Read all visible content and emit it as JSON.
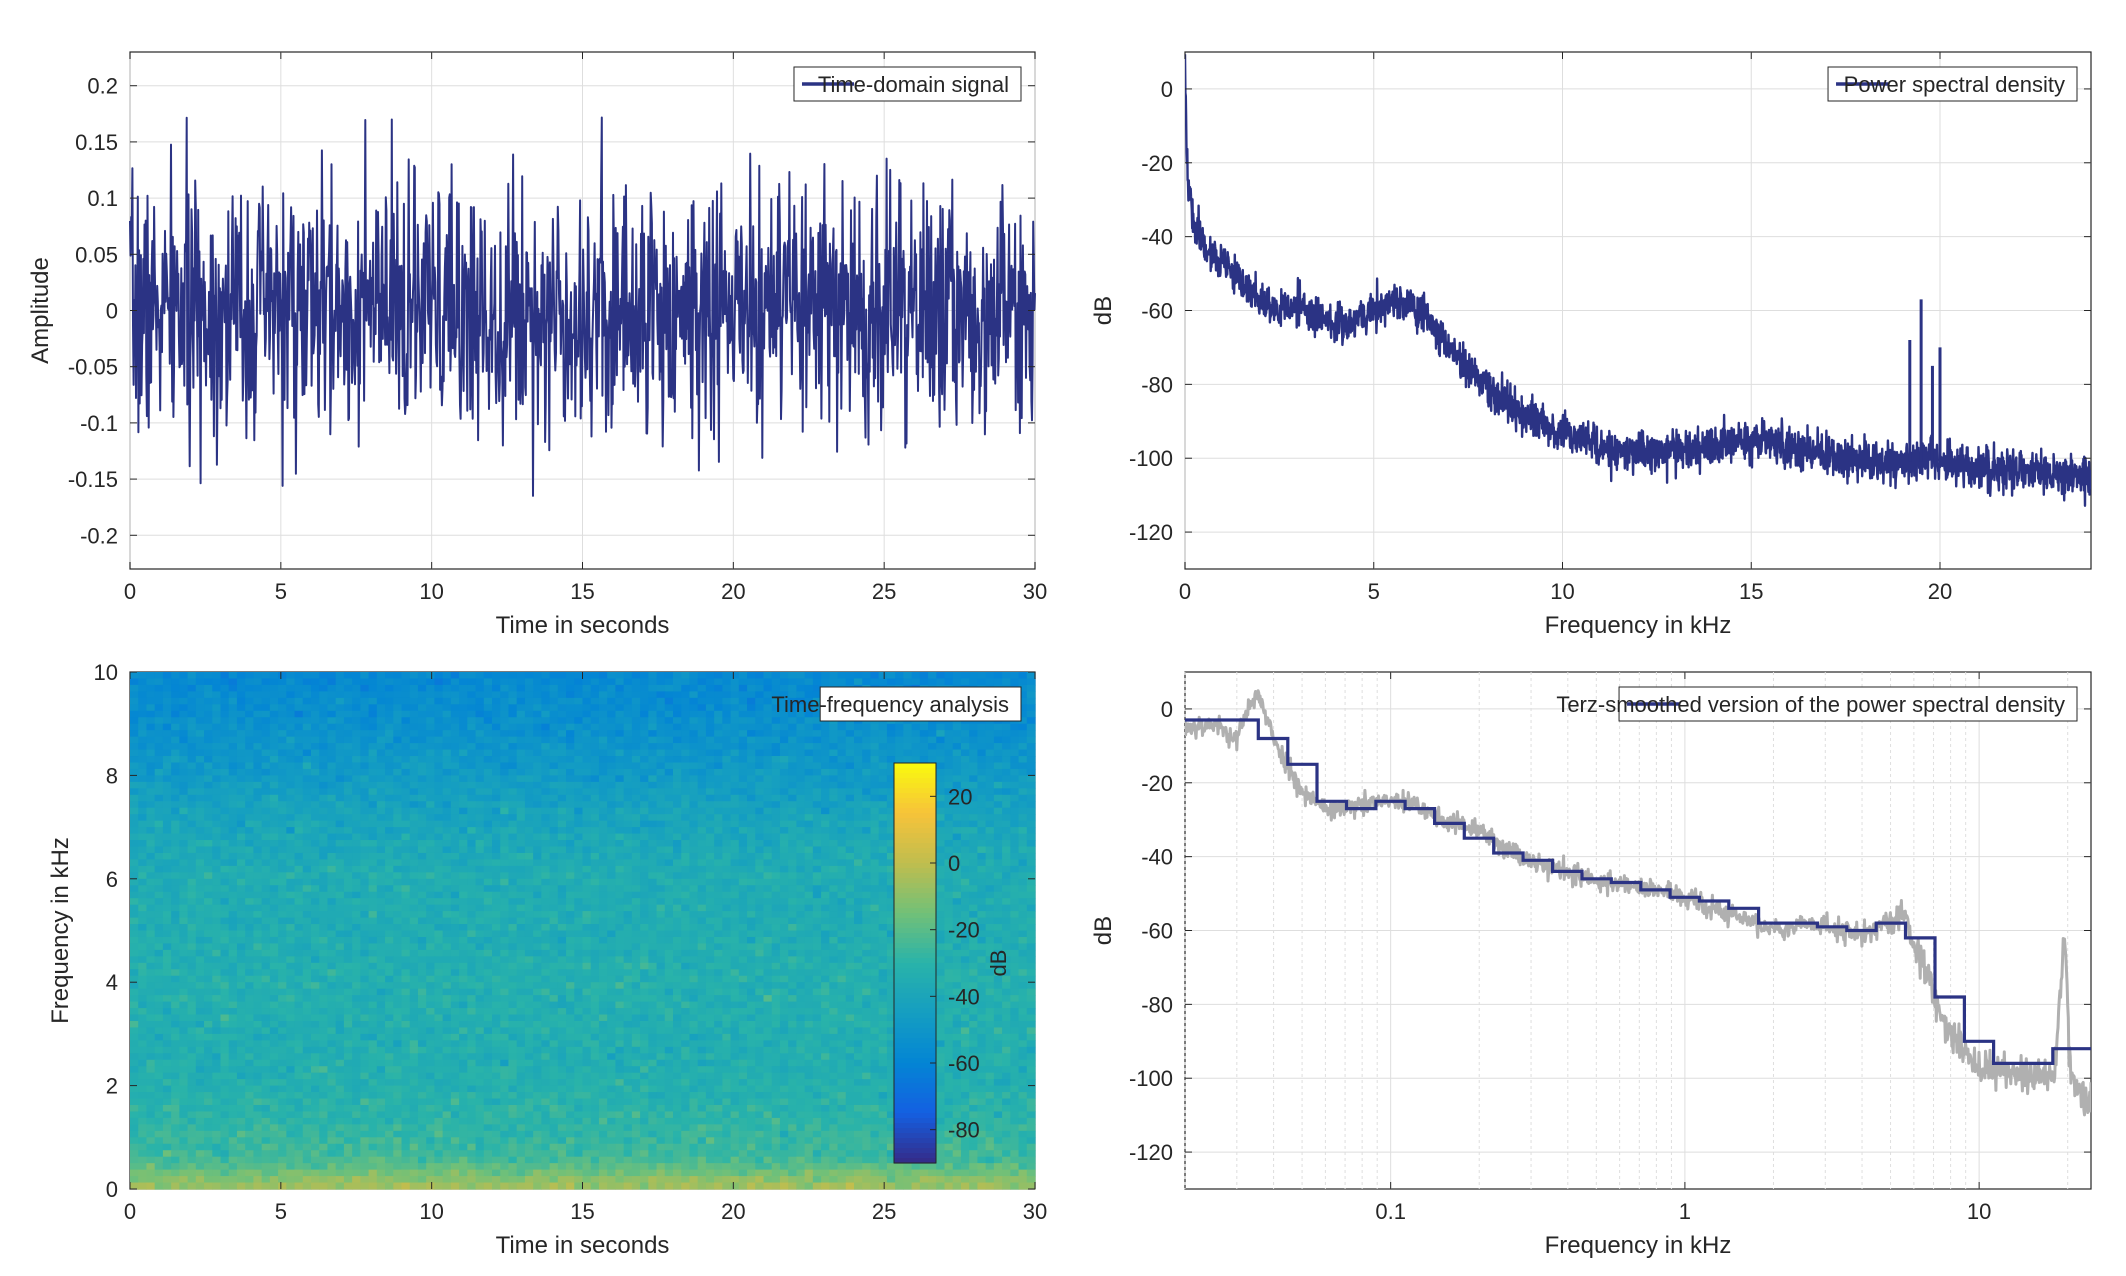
{
  "chart_data": [
    {
      "id": "time",
      "type": "line",
      "xlabel": "Time in seconds",
      "ylabel": "Amplitude",
      "xlim": [
        0,
        30
      ],
      "ylim": [
        -0.23,
        0.23
      ],
      "xticks": [
        0,
        5,
        10,
        15,
        20,
        25,
        30
      ],
      "xtick_labels": [
        "0",
        "5",
        "10",
        "15",
        "20",
        "25",
        "30"
      ],
      "yticks": [
        -0.2,
        -0.15,
        -0.1,
        -0.05,
        0,
        0.05,
        0.1,
        0.15,
        0.2
      ],
      "ytick_labels": [
        "-0.2",
        "-0.15",
        "-0.1",
        "-0.05",
        "0",
        "0.05",
        "0.1",
        "0.15",
        "0.2"
      ],
      "grid": true,
      "legend_position": "top-right",
      "series": [
        {
          "name": "Time-domain signal",
          "color": "#2b3384",
          "signal": {
            "kind": "noise",
            "samples": 1500,
            "std": 0.055,
            "peak_envelope": [
              -0.165,
              0.185
            ]
          }
        }
      ]
    },
    {
      "id": "psd",
      "type": "line",
      "xlabel": "Frequency in kHz",
      "ylabel": "dB",
      "xlim": [
        0,
        24
      ],
      "ylim": [
        -130,
        10
      ],
      "xticks": [
        0,
        5,
        10,
        15,
        20
      ],
      "xtick_labels": [
        "0",
        "5",
        "10",
        "15",
        "20"
      ],
      "yticks": [
        -120,
        -100,
        -80,
        -60,
        -40,
        -20,
        0
      ],
      "ytick_labels": [
        "-120",
        "-100",
        "-80",
        "-60",
        "-40",
        "-20",
        "0"
      ],
      "grid": true,
      "legend_position": "top-right",
      "series": [
        {
          "name": "Power spectral density",
          "color": "#2b3384",
          "x": [
            0,
            0.05,
            0.2,
            0.5,
            1,
            1.5,
            2,
            2.5,
            3,
            3.5,
            4,
            4.5,
            5,
            5.5,
            6,
            6.5,
            7,
            7.5,
            8,
            8.5,
            9,
            9.5,
            10,
            10.5,
            11,
            11.5,
            12,
            12.5,
            13,
            13.5,
            14,
            14.5,
            15,
            15.5,
            16,
            16.5,
            17,
            17.5,
            18,
            18.5,
            19,
            19.5,
            20,
            20.5,
            21,
            21.5,
            22,
            22.5,
            23,
            23.5,
            24
          ],
          "y": [
            5,
            -20,
            -35,
            -42,
            -48,
            -52,
            -58,
            -60,
            -58,
            -62,
            -64,
            -62,
            -60,
            -58,
            -58,
            -63,
            -70,
            -76,
            -81,
            -85,
            -88,
            -91,
            -93,
            -95,
            -97,
            -98,
            -98,
            -99,
            -98,
            -97,
            -97,
            -96,
            -95,
            -96,
            -97,
            -98,
            -99,
            -100,
            -100,
            -101,
            -101,
            -101,
            -101,
            -102,
            -102,
            -103,
            -103,
            -104,
            -104,
            -105,
            -105
          ],
          "spikes": [
            {
              "x": 19.5,
              "y": -57
            },
            {
              "x": 19.2,
              "y": -68
            },
            {
              "x": 19.8,
              "y": -75
            },
            {
              "x": 20.0,
              "y": -70
            }
          ]
        }
      ]
    },
    {
      "id": "spectrogram",
      "type": "heatmap",
      "xlabel": "Time in seconds",
      "ylabel": "Frequency in kHz",
      "xlim": [
        0,
        30
      ],
      "ylim": [
        0,
        10
      ],
      "xticks": [
        0,
        5,
        10,
        15,
        20,
        25,
        30
      ],
      "xtick_labels": [
        "0",
        "5",
        "10",
        "15",
        "20",
        "25",
        "30"
      ],
      "yticks": [
        0,
        2,
        4,
        6,
        8,
        10
      ],
      "ytick_labels": [
        "0",
        "2",
        "4",
        "6",
        "8",
        "10"
      ],
      "legend_position": "top-right",
      "legend_label": "Time-frequency analysis",
      "colorbar": {
        "label": "dB",
        "range": [
          -90,
          30
        ],
        "ticks": [
          20,
          0,
          -20,
          -40,
          -60,
          -80
        ],
        "tick_labels": [
          "20",
          "0",
          "-20",
          "-40",
          "-60",
          "-80"
        ]
      },
      "level_profile": {
        "freq_khz": [
          0,
          0.3,
          0.6,
          1,
          1.5,
          2,
          3,
          4,
          5,
          6,
          7,
          8,
          9,
          10
        ],
        "level_db": [
          -5,
          -15,
          -25,
          -28,
          -30,
          -33,
          -34,
          -33,
          -35,
          -35,
          -40,
          -47,
          -53,
          -58
        ]
      }
    },
    {
      "id": "terz",
      "type": "line",
      "xlabel": "Frequency in kHz",
      "ylabel": "dB",
      "xscale": "log",
      "xlim": [
        0.02,
        24
      ],
      "ylim": [
        -130,
        10
      ],
      "xticks": [
        0.1,
        1,
        10
      ],
      "xtick_labels": [
        "0.1",
        "1",
        "10"
      ],
      "yticks": [
        -120,
        -100,
        -80,
        -60,
        -40,
        -20,
        0
      ],
      "ytick_labels": [
        "-120",
        "-100",
        "-80",
        "-60",
        "-40",
        "-20",
        "0"
      ],
      "grid": true,
      "legend_position": "top-right",
      "series": [
        {
          "name": "",
          "color": "#b0b0b0",
          "x": [
            0.02,
            0.025,
            0.03,
            0.035,
            0.04,
            0.045,
            0.05,
            0.06,
            0.07,
            0.08,
            0.1,
            0.12,
            0.15,
            0.2,
            0.25,
            0.3,
            0.4,
            0.5,
            0.6,
            0.8,
            1,
            1.2,
            1.5,
            2,
            2.5,
            3,
            4,
            5,
            5.5,
            6,
            7,
            8,
            9,
            10,
            12,
            15,
            18,
            19.5,
            20.5,
            22,
            24
          ],
          "y": [
            -5,
            -4,
            -8,
            5,
            -8,
            -16,
            -22,
            -27,
            -27,
            -26,
            -25,
            -26,
            -30,
            -33,
            -38,
            -41,
            -44,
            -47,
            -47,
            -49,
            -51,
            -54,
            -56,
            -60,
            -58,
            -59,
            -61,
            -57,
            -55,
            -62,
            -78,
            -88,
            -93,
            -97,
            -98,
            -99,
            -100,
            -60,
            -100,
            -104,
            -108
          ]
        },
        {
          "name": "Terz-smoothed version of the power spectral density",
          "color": "#2b3384",
          "steps": {
            "edges": [
              0.02,
              0.0355,
              0.0447,
              0.0562,
              0.0708,
              0.0891,
              0.112,
              0.141,
              0.178,
              0.224,
              0.282,
              0.355,
              0.447,
              0.562,
              0.708,
              0.891,
              1.12,
              1.41,
              1.78,
              2.24,
              2.82,
              3.55,
              4.47,
              5.62,
              7.08,
              8.91,
              11.2,
              14.1,
              17.8,
              24
            ],
            "values": [
              -3,
              -8,
              -15,
              -25,
              -27,
              -25,
              -27,
              -31,
              -35,
              -39,
              -41,
              -44,
              -46,
              -47,
              -49,
              -51,
              -52,
              -54,
              -58,
              -58,
              -59,
              -60,
              -58,
              -62,
              -78,
              -90,
              -96,
              -96,
              -92
            ]
          }
        }
      ]
    }
  ]
}
